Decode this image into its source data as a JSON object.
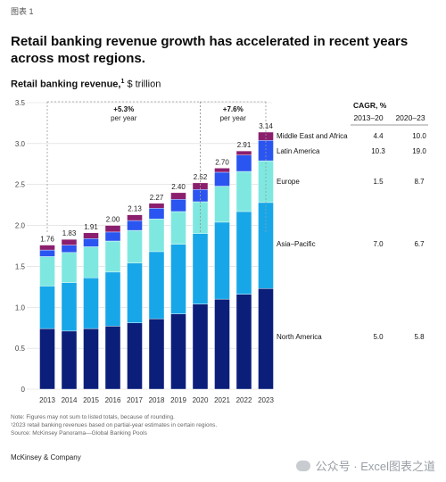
{
  "figure_label": "图表 1",
  "headline": "Retail banking revenue growth has accelerated in recent years across most regions.",
  "chart_title_bold": "Retail banking revenue,",
  "chart_title_sup": "1",
  "chart_title_rest": " $ trillion",
  "notes": [
    "Note: Figures may not sum to listed totals, because of rounding.",
    "¹2023 retail banking revenues based on partial-year estimates in certain regions.",
    "Source: McKinsey Panorama—Global Banking Pools"
  ],
  "brand": "McKinsey & Company",
  "watermark": "公众号 · Excel图表之道",
  "colors": {
    "north_america": "#0b1f7a",
    "asia_pacific": "#17a7e8",
    "europe": "#7ee8e0",
    "latin_america": "#2a55f0",
    "mea": "#8b1f6e",
    "grid": "#d9d9d9",
    "bracket": "#9a9a9a"
  },
  "chart_data": {
    "type": "bar",
    "stacked": true,
    "categories": [
      "2013",
      "2014",
      "2015",
      "2016",
      "2017",
      "2018",
      "2019",
      "2020",
      "2021",
      "2022",
      "2023"
    ],
    "ylim": [
      0,
      3.5
    ],
    "yticks": [
      "0",
      "0.5",
      "1.0",
      "1.5",
      "2.0",
      "2.5",
      "3.0",
      "3.5"
    ],
    "grid": true,
    "totals": [
      "1.76",
      "1.83",
      "1.91",
      "2.00",
      "2.13",
      "2.27",
      "2.40",
      "2.52",
      "2.70",
      "2.91",
      "3.14"
    ],
    "series": [
      {
        "name": "North America",
        "colorKey": "north_america",
        "values": [
          0.74,
          0.71,
          0.74,
          0.77,
          0.81,
          0.86,
          0.92,
          1.04,
          1.1,
          1.16,
          1.23
        ]
      },
      {
        "name": "Asia–Pacific",
        "colorKey": "asia_pacific",
        "values": [
          0.52,
          0.59,
          0.62,
          0.66,
          0.73,
          0.82,
          0.85,
          0.86,
          0.94,
          1.01,
          1.05
        ]
      },
      {
        "name": "Europe",
        "colorKey": "europe",
        "values": [
          0.36,
          0.37,
          0.38,
          0.38,
          0.4,
          0.4,
          0.4,
          0.39,
          0.44,
          0.49,
          0.51
        ]
      },
      {
        "name": "Latin America",
        "colorKey": "latin_america",
        "values": [
          0.08,
          0.09,
          0.1,
          0.11,
          0.12,
          0.13,
          0.15,
          0.15,
          0.17,
          0.2,
          0.25
        ]
      },
      {
        "name": "Middle East and Africa",
        "colorKey": "mea",
        "values": [
          0.06,
          0.07,
          0.07,
          0.08,
          0.07,
          0.06,
          0.08,
          0.08,
          0.05,
          0.05,
          0.1
        ]
      }
    ],
    "cagr_header": "CAGR, %",
    "cagr_columns": [
      "2013–20",
      "2020–23"
    ],
    "cagr_rows": [
      {
        "name": "Middle East and Africa",
        "a": "4.4",
        "b": "10.0"
      },
      {
        "name": "Latin America",
        "a": "10.3",
        "b": "19.0"
      },
      {
        "name": "Europe",
        "a": "1.5",
        "b": "8.7"
      },
      {
        "name": "Asia–Pacific",
        "a": "7.0",
        "b": "6.7"
      },
      {
        "name": "North America",
        "a": "5.0",
        "b": "5.8"
      }
    ],
    "annotations": [
      {
        "from": "2013",
        "to": "2020",
        "value": "+5.3%",
        "label": "per year"
      },
      {
        "from": "2020",
        "to": "2023",
        "value": "+7.6%",
        "label": "per year"
      }
    ]
  }
}
